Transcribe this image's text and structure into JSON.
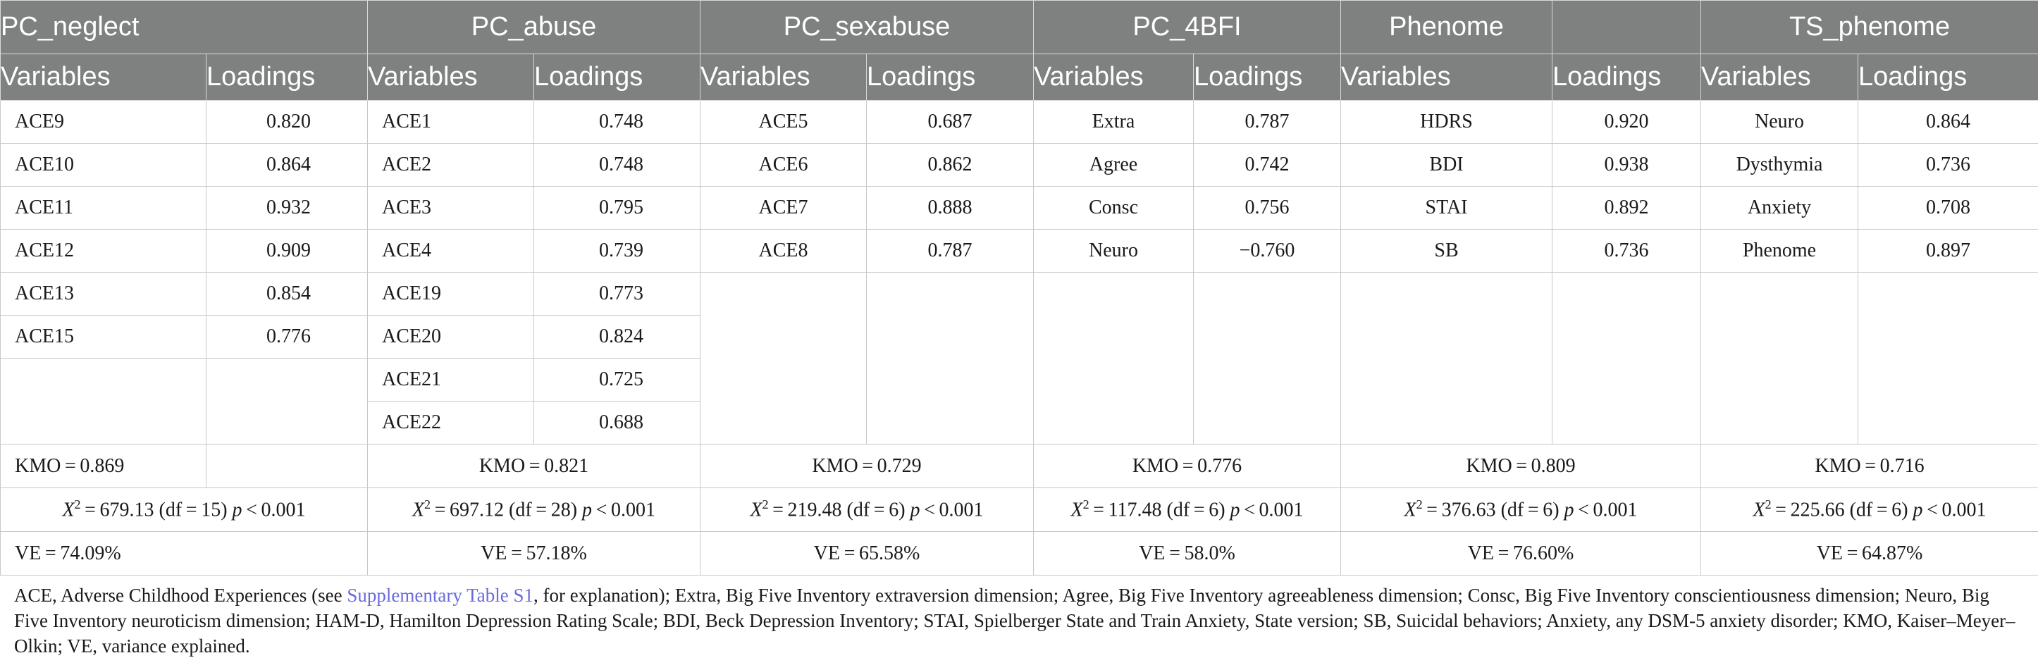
{
  "groups": [
    "PC_neglect",
    "PC_abuse",
    "PC_sexabuse",
    "PC_4BFI",
    "Phenome",
    "TS_phenome"
  ],
  "col_headers": {
    "variables": "Variables",
    "loadings": "Loadings"
  },
  "pc_neglect": [
    {
      "var": "ACE9",
      "load": "0.820"
    },
    {
      "var": "ACE10",
      "load": "0.864"
    },
    {
      "var": "ACE11",
      "load": "0.932"
    },
    {
      "var": "ACE12",
      "load": "0.909"
    },
    {
      "var": "ACE13",
      "load": "0.854"
    },
    {
      "var": "ACE15",
      "load": "0.776"
    }
  ],
  "pc_abuse": [
    {
      "var": "ACE1",
      "load": "0.748"
    },
    {
      "var": "ACE2",
      "load": "0.748"
    },
    {
      "var": "ACE3",
      "load": "0.795"
    },
    {
      "var": "ACE4",
      "load": "0.739"
    },
    {
      "var": "ACE19",
      "load": "0.773"
    },
    {
      "var": "ACE20",
      "load": "0.824"
    },
    {
      "var": "ACE21",
      "load": "0.725"
    },
    {
      "var": "ACE22",
      "load": "0.688"
    }
  ],
  "pc_sexabuse": [
    {
      "var": "ACE5",
      "load": "0.687"
    },
    {
      "var": "ACE6",
      "load": "0.862"
    },
    {
      "var": "ACE7",
      "load": "0.888"
    },
    {
      "var": "ACE8",
      "load": "0.787"
    }
  ],
  "pc_4bfi": [
    {
      "var": "Extra",
      "load": "0.787"
    },
    {
      "var": "Agree",
      "load": "0.742"
    },
    {
      "var": "Consc",
      "load": "0.756"
    },
    {
      "var": "Neuro",
      "load": "−0.760"
    }
  ],
  "phenome": [
    {
      "var": "HDRS",
      "load": "0.920"
    },
    {
      "var": "BDI",
      "load": "0.938"
    },
    {
      "var": "STAI",
      "load": "0.892"
    },
    {
      "var": "SB",
      "load": "0.736"
    }
  ],
  "ts_phenome": [
    {
      "var": "Neuro",
      "load": "0.864"
    },
    {
      "var": "Dysthymia",
      "load": "0.736"
    },
    {
      "var": "Anxiety",
      "load": "0.708"
    },
    {
      "var": "Phenome",
      "load": "0.897"
    }
  ],
  "kmo": [
    "KMO = 0.869",
    "KMO = 0.821",
    "KMO = 0.729",
    "KMO = 0.776",
    "KMO = 0.809",
    "KMO = 0.716"
  ],
  "chi": {
    "symbol": "X",
    "sup": "2",
    "p": "p",
    "values": [
      {
        "pre": " = 679.13 (df = 15) ",
        "post": " < 0.001"
      },
      {
        "pre": " = 697.12 (df = 28) ",
        "post": " < 0.001"
      },
      {
        "pre": " = 219.48 (df = 6) ",
        "post": " < 0.001"
      },
      {
        "pre": " = 117.48 (df = 6) ",
        "post": " < 0.001"
      },
      {
        "pre": " = 376.63 (df = 6) ",
        "post": " < 0.001"
      },
      {
        "pre": " = 225.66 (df = 6) ",
        "post": " < 0.001"
      }
    ]
  },
  "ve": [
    "VE = 74.09%",
    "VE = 57.18%",
    "VE = 65.58%",
    "VE = 58.0%",
    "VE = 76.60%",
    "VE = 64.87%"
  ],
  "footnote": {
    "before": "ACE, Adverse Childhood Experiences (see ",
    "link": "Supplementary Table S1",
    "after": ", for explanation); Extra, Big Five Inventory extraversion dimension; Agree, Big Five Inventory agreeableness dimension; Consc, Big Five Inventory conscientiousness dimension; Neuro, Big Five Inventory neuroticism dimension; HAM-D, Hamilton Depression Rating Scale; BDI, Beck Depression Inventory; STAI, Spielberger State and Train Anxiety, State version; SB, Suicidal behaviors; Anxiety, any DSM-5 anxiety disorder; KMO, Kaiser–Meyer–Olkin; VE, variance explained."
  }
}
